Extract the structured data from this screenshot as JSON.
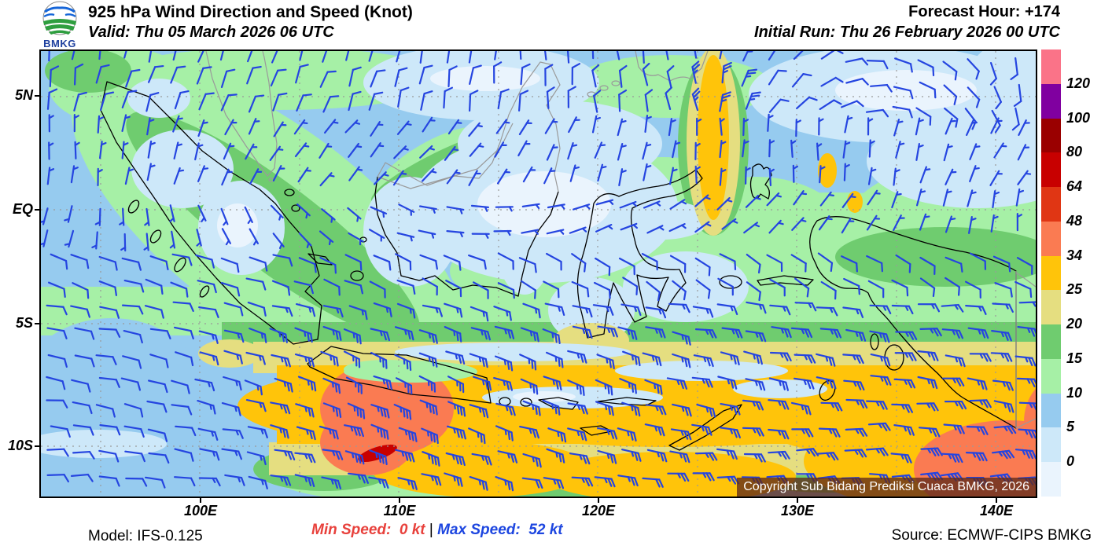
{
  "header": {
    "title": "925 hPa Wind Direction and Speed (Knot)",
    "valid": "Valid: Thu 05 March 2026 06 UTC",
    "forecast_hour": "Forecast Hour: +174",
    "initial_run": "Initial Run: Thu 26 February 2026 00 UTC",
    "logo_text": "BMKG"
  },
  "axes": {
    "lat_labels": [
      "5N",
      "EQ",
      "5S",
      "10S"
    ],
    "lon_labels": [
      "100E",
      "110E",
      "120E",
      "130E",
      "140E"
    ]
  },
  "legend": {
    "values": [
      "120",
      "100",
      "80",
      "64",
      "48",
      "34",
      "25",
      "20",
      "15",
      "10",
      "5",
      "0"
    ],
    "colors": [
      "#FA7388",
      "#8000A0",
      "#9A0000",
      "#C80000",
      "#E03614",
      "#FA7B52",
      "#FFC40A",
      "#E5DE80",
      "#6FCC6F",
      "#A6F0A6",
      "#96CBEF",
      "#CDE8F9",
      "#EAF4FD"
    ]
  },
  "footer": {
    "model": "Model: IFS-0.125",
    "min_speed": "Min Speed:  0 kt",
    "separator": " | ",
    "max_speed": "Max Speed:  52 kt",
    "source": "Source: ECMWF-CIPS BMKG"
  },
  "map": {
    "copyright": "Copyright Sub Bidang Prediksi Cuaca BMKG, 2026",
    "barb_color": "#2545E0"
  }
}
